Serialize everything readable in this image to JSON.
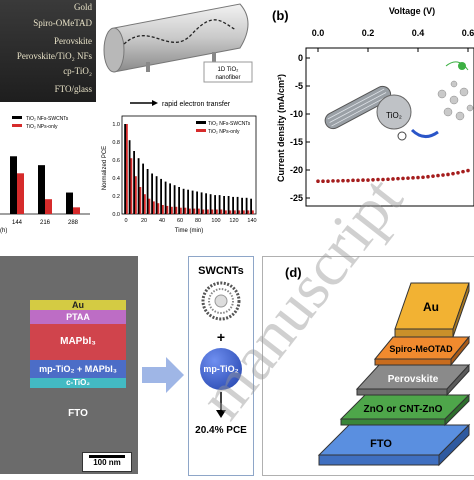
{
  "panel_a": {
    "layers": [
      "Gold",
      "Spiro-OMeTAD",
      "Perovskite",
      "Perovskite/TiO₂ NFs",
      "cp-TiO₂",
      "FTO/glass"
    ],
    "fiber_label_1": "1D TiO₂",
    "fiber_label_2": "nanofiber",
    "electron_caption": "rapid electron transfer"
  },
  "chart_left": {
    "type": "bar",
    "xlabel_partial": "(h)",
    "categories": [
      "144",
      "216",
      "288"
    ],
    "series": [
      {
        "name": "TiO₂ NFs-SWCNTs",
        "color": "#000000",
        "values": [
          0.78,
          0.66,
          0.29
        ]
      },
      {
        "name": "TiO₂ NPs-only",
        "color": "#d62b2b",
        "values": [
          0.55,
          0.2,
          0.09
        ]
      }
    ]
  },
  "chart_right": {
    "type": "bar",
    "ylabel": "Normalized PCE",
    "xlabel": "Time (min)",
    "x_ticks": [
      "0",
      "20",
      "40",
      "60",
      "80",
      "100",
      "120",
      "140"
    ],
    "y_ticks": [
      "0.0",
      "0.2",
      "0.4",
      "0.6",
      "0.8",
      "1.0"
    ],
    "ylim": [
      0,
      1.0
    ],
    "series": [
      {
        "name": "TiO₂ NFs-SWCNTs",
        "color": "#000000"
      },
      {
        "name": "TiO₂ NPs-only",
        "color": "#d62b2b"
      }
    ],
    "x": [
      0,
      5,
      10,
      15,
      20,
      25,
      30,
      35,
      40,
      45,
      50,
      55,
      60,
      65,
      70,
      75,
      80,
      85,
      90,
      95,
      100,
      105,
      110,
      115,
      120,
      125,
      130,
      135,
      140
    ],
    "values_black": [
      1.0,
      0.82,
      0.7,
      0.62,
      0.56,
      0.5,
      0.45,
      0.42,
      0.39,
      0.36,
      0.34,
      0.32,
      0.3,
      0.28,
      0.27,
      0.26,
      0.25,
      0.24,
      0.23,
      0.22,
      0.21,
      0.21,
      0.2,
      0.2,
      0.19,
      0.19,
      0.18,
      0.18,
      0.17
    ],
    "values_red": [
      1.0,
      0.62,
      0.42,
      0.3,
      0.22,
      0.17,
      0.14,
      0.12,
      0.1,
      0.09,
      0.08,
      0.08,
      0.07,
      0.07,
      0.06,
      0.06,
      0.06,
      0.05,
      0.05,
      0.05,
      0.05,
      0.05,
      0.04,
      0.04,
      0.04,
      0.04,
      0.04,
      0.04,
      0.04
    ]
  },
  "panel_b": {
    "label": "(b)",
    "top_axis_label": "Voltage (V)",
    "x_ticks": [
      "0.0",
      "0.2",
      "0.4",
      "0.6"
    ],
    "ylabel": "Current density (mA/cm²)",
    "y_ticks": [
      "0",
      "-5",
      "-10",
      "-15",
      "-20",
      "-25"
    ],
    "tio2_label": "TiO₂",
    "chart_data": {
      "type": "scatter",
      "x": [
        0.0,
        0.02,
        0.04,
        0.06,
        0.08,
        0.1,
        0.12,
        0.14,
        0.16,
        0.18,
        0.2,
        0.22,
        0.24,
        0.26,
        0.28,
        0.3,
        0.32,
        0.34,
        0.36,
        0.38,
        0.4,
        0.42,
        0.44,
        0.46,
        0.48,
        0.5,
        0.52,
        0.54,
        0.56,
        0.58,
        0.6,
        0.62,
        0.64,
        0.66
      ],
      "y": [
        -22.0,
        -22.0,
        -22.0,
        -21.95,
        -21.95,
        -21.9,
        -21.9,
        -21.85,
        -21.85,
        -21.8,
        -21.8,
        -21.75,
        -21.7,
        -21.7,
        -21.65,
        -21.6,
        -21.55,
        -21.5,
        -21.45,
        -21.4,
        -21.35,
        -21.3,
        -21.2,
        -21.1,
        -21.0,
        -20.9,
        -20.8,
        -20.65,
        -20.5,
        -20.3,
        -20.1,
        -19.8,
        -19.4,
        -19.0
      ],
      "xlim": [
        0.0,
        0.67
      ],
      "ylim": [
        -25,
        0
      ]
    }
  },
  "panel_c": {
    "layers": [
      "Au",
      "PTAA",
      "MAPbI₃",
      "mp-TiO₂ + MAPbI₃",
      "c-TiO₂",
      "FTO"
    ],
    "scalebar": "100 nm",
    "swcnt_label": "SWCNTs",
    "plus": "+",
    "mp_label": "mp-TiO₂",
    "pce_label": "20.4% PCE"
  },
  "panel_d": {
    "label": "(d)",
    "layers": [
      "Au",
      "Spiro-MeOTAD",
      "Perovskite",
      "ZnO or CNT-ZnO",
      "FTO"
    ],
    "colors": [
      "#f2b233",
      "#f08a2e",
      "#8a8a8a",
      "#4ea64a",
      "#5a8fe0"
    ]
  },
  "watermark": "manuscript"
}
